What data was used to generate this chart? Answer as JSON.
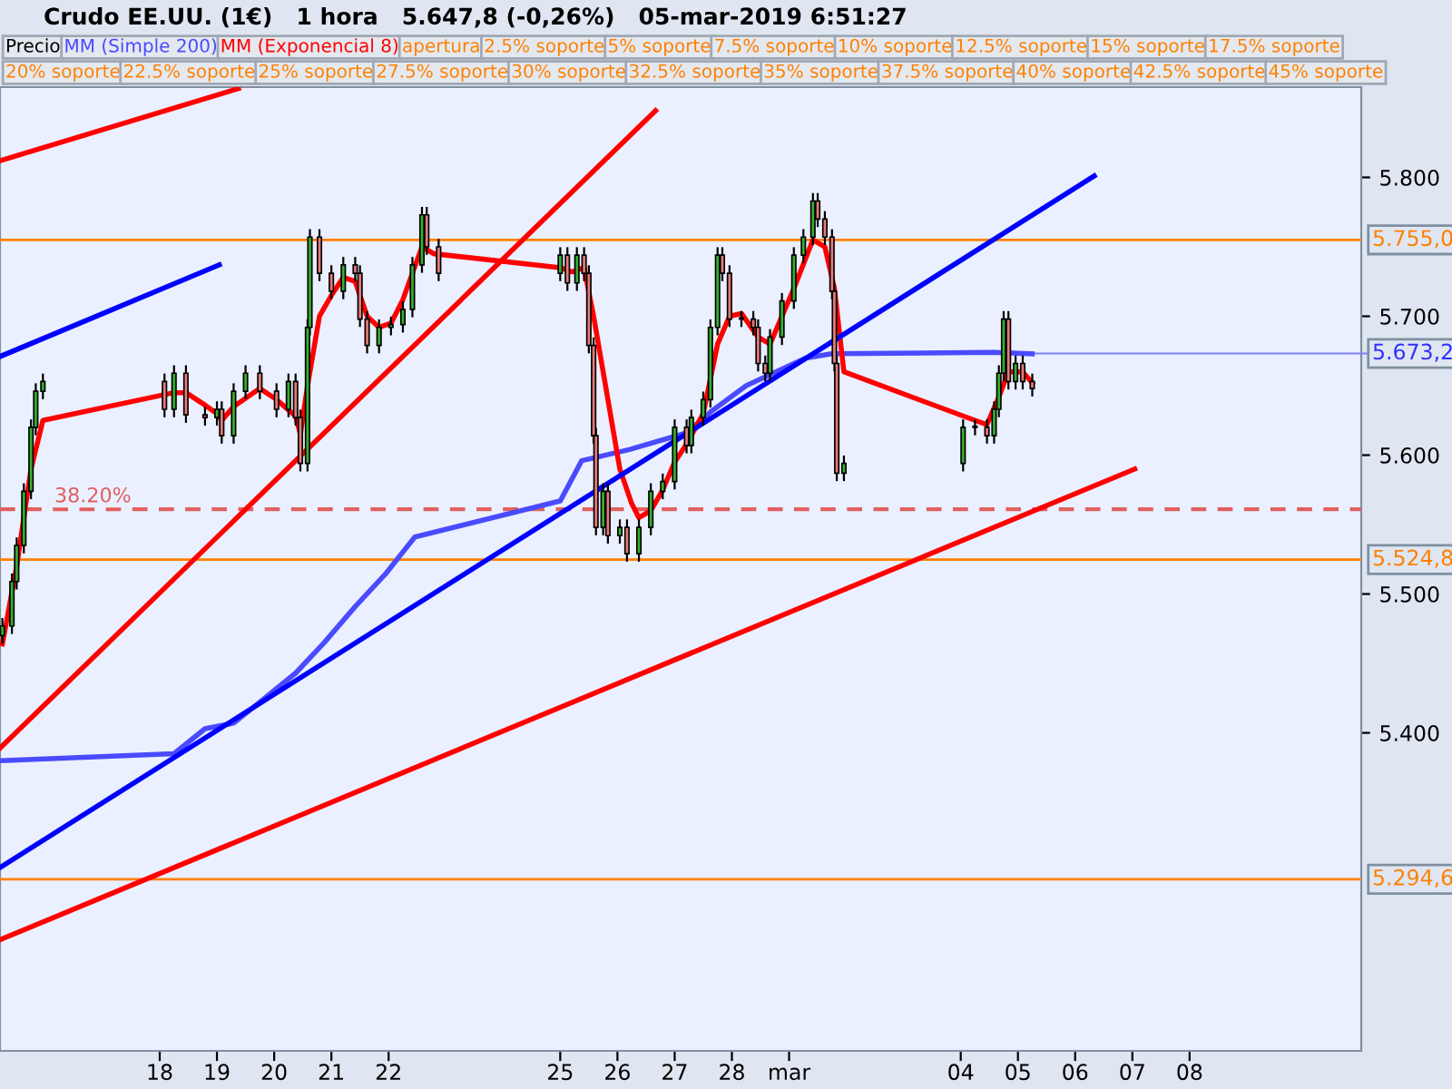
{
  "chart_data": {
    "type": "candlestick",
    "title": "Crudo EE.UU. (1€)   1 hora   5.647,8 (-0,26%)   05-mar-2019 6:51:27",
    "xlim": [
      "2019-02-15T05:00",
      "2019-03-11T00:00"
    ],
    "ylim": [
      5.171,
      5.865
    ],
    "xticks": [
      {
        "value": "2019-02-18",
        "label": "18"
      },
      {
        "value": "2019-02-19",
        "label": "19"
      },
      {
        "value": "2019-02-20",
        "label": "20"
      },
      {
        "value": "2019-02-21",
        "label": "21"
      },
      {
        "value": "2019-02-22",
        "label": "22"
      },
      {
        "value": "2019-02-25",
        "label": "25"
      },
      {
        "value": "2019-02-26",
        "label": "26"
      },
      {
        "value": "2019-02-27",
        "label": "27"
      },
      {
        "value": "2019-02-28",
        "label": "28"
      },
      {
        "value": "2019-03-01",
        "label": "mar"
      },
      {
        "value": "2019-03-04",
        "label": "04"
      },
      {
        "value": "2019-03-05",
        "label": "05"
      },
      {
        "value": "2019-03-06",
        "label": "06"
      },
      {
        "value": "2019-03-07",
        "label": "07"
      },
      {
        "value": "2019-03-08",
        "label": "08"
      }
    ],
    "yticks": [
      {
        "value": 5.4,
        "label": "5.400"
      },
      {
        "value": 5.5,
        "label": "5.500"
      },
      {
        "value": 5.6,
        "label": "5.600"
      },
      {
        "value": 5.7,
        "label": "5.700"
      },
      {
        "value": 5.8,
        "label": "5.800"
      }
    ],
    "legend": "top left",
    "grid": false,
    "series": [
      {
        "name": "Precio",
        "color": "#000000",
        "x": [
          "2019-02-15T06:00",
          "2019-02-15T10:00",
          "2019-02-15T12:00",
          "2019-02-15T15:00",
          "2019-02-15T18:00",
          "2019-02-15T20:00",
          "2019-02-15T23:00",
          "2019-02-18T02:00",
          "2019-02-18T06:00",
          "2019-02-18T11:00",
          "2019-02-18T19:00",
          "2019-02-19T00:00",
          "2019-02-19T02:00",
          "2019-02-19T07:00",
          "2019-02-19T12:00",
          "2019-02-19T18:00",
          "2019-02-20T01:00",
          "2019-02-20T06:00",
          "2019-02-20T09:00",
          "2019-02-20T11:00",
          "2019-02-20T14:00",
          "2019-02-20T15:00",
          "2019-02-20T19:00",
          "2019-02-21T00:00",
          "2019-02-21T05:00",
          "2019-02-21T10:00",
          "2019-02-21T12:00",
          "2019-02-21T15:00",
          "2019-02-21T20:00",
          "2019-02-22T01:00",
          "2019-02-22T06:00",
          "2019-02-22T10:00",
          "2019-02-22T14:00",
          "2019-02-22T16:00",
          "2019-02-22T21:00",
          "2019-02-25T00:00",
          "2019-02-25T03:00",
          "2019-02-25T07:00",
          "2019-02-25T10:00",
          "2019-02-25T12:00",
          "2019-02-25T14:00",
          "2019-02-25T15:00",
          "2019-02-25T18:00",
          "2019-02-25T20:00",
          "2019-02-26T01:00",
          "2019-02-26T04:00",
          "2019-02-26T09:00",
          "2019-02-26T14:00",
          "2019-02-26T19:00",
          "2019-02-27T00:00",
          "2019-02-27T05:00",
          "2019-02-27T07:00",
          "2019-02-27T12:00",
          "2019-02-27T15:00",
          "2019-02-27T18:00",
          "2019-02-27T20:00",
          "2019-02-27T23:00",
          "2019-02-28T04:00",
          "2019-02-28T09:00",
          "2019-02-28T11:00",
          "2019-02-28T14:00",
          "2019-02-28T16:00",
          "2019-02-28T21:00",
          "2019-03-01T02:00",
          "2019-03-01T06:00",
          "2019-03-01T10:00",
          "2019-03-01T12:00",
          "2019-03-01T15:00",
          "2019-03-01T18:00",
          "2019-03-01T19:00",
          "2019-03-01T20:00",
          "2019-03-01T23:00",
          "2019-03-04T01:00",
          "2019-03-04T06:00",
          "2019-03-04T11:00",
          "2019-03-04T14:00",
          "2019-03-04T16:00",
          "2019-03-04T18:00",
          "2019-03-04T20:00",
          "2019-03-04T23:00",
          "2019-03-05T02:00",
          "2019-03-05T06:00"
        ],
        "ohlc": [
          [
            5.47,
            5.482,
            5.465,
            5.477
          ],
          [
            5.477,
            5.514,
            5.472,
            5.509
          ],
          [
            5.509,
            5.54,
            5.504,
            5.535
          ],
          [
            5.535,
            5.579,
            5.53,
            5.574
          ],
          [
            5.574,
            5.625,
            5.569,
            5.62
          ],
          [
            5.62,
            5.651,
            5.615,
            5.646
          ],
          [
            5.646,
            5.658,
            5.641,
            5.653
          ],
          [
            5.653,
            5.658,
            5.628,
            5.633
          ],
          [
            5.633,
            5.664,
            5.628,
            5.659
          ],
          [
            5.659,
            5.664,
            5.624,
            5.629
          ],
          [
            5.629,
            5.634,
            5.622,
            5.627
          ],
          [
            5.627,
            5.638,
            5.622,
            5.633
          ],
          [
            5.633,
            5.638,
            5.609,
            5.614
          ],
          [
            5.614,
            5.651,
            5.609,
            5.646
          ],
          [
            5.646,
            5.664,
            5.641,
            5.659
          ],
          [
            5.659,
            5.664,
            5.641,
            5.646
          ],
          [
            5.646,
            5.651,
            5.628,
            5.633
          ],
          [
            5.633,
            5.658,
            5.628,
            5.653
          ],
          [
            5.653,
            5.658,
            5.622,
            5.627
          ],
          [
            5.627,
            5.632,
            5.589,
            5.594
          ],
          [
            5.594,
            5.697,
            5.589,
            5.692
          ],
          [
            5.692,
            5.762,
            5.687,
            5.757
          ],
          [
            5.757,
            5.762,
            5.726,
            5.731
          ],
          [
            5.731,
            5.736,
            5.713,
            5.718
          ],
          [
            5.718,
            5.742,
            5.713,
            5.737
          ],
          [
            5.737,
            5.742,
            5.726,
            5.731
          ],
          [
            5.731,
            5.736,
            5.693,
            5.698
          ],
          [
            5.698,
            5.703,
            5.674,
            5.679
          ],
          [
            5.679,
            5.697,
            5.674,
            5.692
          ],
          [
            5.692,
            5.699,
            5.687,
            5.694
          ],
          [
            5.694,
            5.71,
            5.689,
            5.705
          ],
          [
            5.705,
            5.742,
            5.7,
            5.737
          ],
          [
            5.737,
            5.778,
            5.732,
            5.773
          ],
          [
            5.773,
            5.778,
            5.745,
            5.75
          ],
          [
            5.75,
            5.755,
            5.726,
            5.731
          ],
          [
            5.731,
            5.749,
            5.726,
            5.744
          ],
          [
            5.744,
            5.749,
            5.719,
            5.724
          ],
          [
            5.724,
            5.749,
            5.719,
            5.744
          ],
          [
            5.744,
            5.749,
            5.726,
            5.731
          ],
          [
            5.731,
            5.736,
            5.674,
            5.679
          ],
          [
            5.679,
            5.684,
            5.609,
            5.614
          ],
          [
            5.614,
            5.619,
            5.543,
            5.548
          ],
          [
            5.548,
            5.579,
            5.543,
            5.574
          ],
          [
            5.574,
            5.579,
            5.537,
            5.542
          ],
          [
            5.542,
            5.553,
            5.537,
            5.548
          ],
          [
            5.548,
            5.553,
            5.524,
            5.529
          ],
          [
            5.529,
            5.553,
            5.524,
            5.548
          ],
          [
            5.548,
            5.579,
            5.543,
            5.574
          ],
          [
            5.574,
            5.586,
            5.569,
            5.581
          ],
          [
            5.581,
            5.625,
            5.576,
            5.62
          ],
          [
            5.62,
            5.625,
            5.602,
            5.607
          ],
          [
            5.607,
            5.632,
            5.602,
            5.627
          ],
          [
            5.627,
            5.645,
            5.622,
            5.64
          ],
          [
            5.64,
            5.697,
            5.635,
            5.692
          ],
          [
            5.692,
            5.749,
            5.687,
            5.744
          ],
          [
            5.744,
            5.749,
            5.726,
            5.731
          ],
          [
            5.731,
            5.736,
            5.693,
            5.698
          ],
          [
            5.698,
            5.703,
            5.693,
            5.698
          ],
          [
            5.698,
            5.703,
            5.687,
            5.692
          ],
          [
            5.692,
            5.697,
            5.661,
            5.666
          ],
          [
            5.666,
            5.671,
            5.654,
            5.659
          ],
          [
            5.659,
            5.69,
            5.654,
            5.685
          ],
          [
            5.685,
            5.716,
            5.68,
            5.711
          ],
          [
            5.711,
            5.749,
            5.706,
            5.744
          ],
          [
            5.744,
            5.762,
            5.739,
            5.757
          ],
          [
            5.757,
            5.788,
            5.752,
            5.783
          ],
          [
            5.783,
            5.788,
            5.765,
            5.77
          ],
          [
            5.77,
            5.775,
            5.752,
            5.757
          ],
          [
            5.757,
            5.762,
            5.713,
            5.718
          ],
          [
            5.718,
            5.723,
            5.661,
            5.666
          ],
          [
            5.666,
            5.671,
            5.582,
            5.587
          ],
          [
            5.587,
            5.599,
            5.582,
            5.594
          ],
          [
            5.594,
            5.625,
            5.589,
            5.62
          ],
          [
            5.62,
            5.625,
            5.615,
            5.62
          ],
          [
            5.62,
            5.625,
            5.609,
            5.614
          ],
          [
            5.614,
            5.638,
            5.609,
            5.633
          ],
          [
            5.633,
            5.664,
            5.628,
            5.659
          ],
          [
            5.659,
            5.703,
            5.654,
            5.698
          ],
          [
            5.698,
            5.703,
            5.648,
            5.653
          ],
          [
            5.653,
            5.671,
            5.648,
            5.666
          ],
          [
            5.666,
            5.671,
            5.648,
            5.653
          ],
          [
            5.653,
            5.658,
            5.643,
            5.648
          ]
        ]
      },
      {
        "name": "MM (Simple 200)",
        "type": "line",
        "color": "#4a4aff",
        "x": [
          "2019-02-15T05:00",
          "2019-02-18T06:00",
          "2019-02-18T19:00",
          "2019-02-19T07:00",
          "2019-02-19T20:00",
          "2019-02-20T09:00",
          "2019-02-20T21:00",
          "2019-02-21T10:00",
          "2019-02-21T23:00",
          "2019-02-22T11:00",
          "2019-02-25T00:00",
          "2019-02-25T09:00",
          "2019-02-26T05:00",
          "2019-02-27T05:00",
          "2019-02-27T15:00",
          "2019-02-28T06:00",
          "2019-03-01T07:00",
          "2019-03-01T18:00",
          "2019-03-04T14:00",
          "2019-03-05T06:00"
        ],
        "values": [
          5.38,
          5.385,
          5.403,
          5.407,
          5.425,
          5.443,
          5.465,
          5.491,
          5.515,
          5.541,
          5.567,
          5.596,
          5.604,
          5.616,
          5.631,
          5.65,
          5.67,
          5.673,
          5.674,
          5.673
        ]
      },
      {
        "name": "MM (Exponencial 8)",
        "type": "line",
        "color": "#ff0000",
        "x": [
          "2019-02-15T06:00",
          "2019-02-15T12:00",
          "2019-02-15T18:00",
          "2019-02-15T23:00",
          "2019-02-18T06:00",
          "2019-02-18T11:00",
          "2019-02-18T19:00",
          "2019-02-19T00:00",
          "2019-02-19T02:00",
          "2019-02-19T07:00",
          "2019-02-19T18:00",
          "2019-02-20T01:00",
          "2019-02-20T09:00",
          "2019-02-20T11:00",
          "2019-02-20T14:00",
          "2019-02-20T19:00",
          "2019-02-21T00:00",
          "2019-02-21T05:00",
          "2019-02-21T10:00",
          "2019-02-21T15:00",
          "2019-02-21T20:00",
          "2019-02-22T01:00",
          "2019-02-22T06:00",
          "2019-02-22T14:00",
          "2019-02-22T19:00",
          "2019-02-25T00:00",
          "2019-02-25T05:00",
          "2019-02-25T10:00",
          "2019-02-25T14:00",
          "2019-02-25T20:00",
          "2019-02-26T01:00",
          "2019-02-26T06:00",
          "2019-02-26T09:00",
          "2019-02-26T14:00",
          "2019-02-26T19:00",
          "2019-02-27T00:00",
          "2019-02-27T05:00",
          "2019-02-27T12:00",
          "2019-02-27T18:00",
          "2019-02-27T23:00",
          "2019-02-28T04:00",
          "2019-02-28T11:00",
          "2019-02-28T16:00",
          "2019-03-01T02:00",
          "2019-03-01T10:00",
          "2019-03-01T15:00",
          "2019-03-01T19:00",
          "2019-03-01T23:00",
          "2019-03-04T06:00",
          "2019-03-04T11:00",
          "2019-03-04T16:00",
          "2019-03-04T20:00",
          "2019-03-05T02:00",
          "2019-03-05T06:00"
        ],
        "values": [
          5.464,
          5.52,
          5.59,
          5.625,
          5.645,
          5.645,
          5.636,
          5.63,
          5.625,
          5.635,
          5.648,
          5.64,
          5.628,
          5.615,
          5.65,
          5.7,
          5.715,
          5.728,
          5.725,
          5.7,
          5.692,
          5.695,
          5.712,
          5.75,
          5.745,
          5.735,
          5.732,
          5.735,
          5.7,
          5.64,
          5.59,
          5.565,
          5.555,
          5.56,
          5.575,
          5.595,
          5.608,
          5.63,
          5.68,
          5.7,
          5.702,
          5.685,
          5.68,
          5.72,
          5.755,
          5.75,
          5.72,
          5.66,
          5.625,
          5.622,
          5.642,
          5.66,
          5.66,
          5.652
        ]
      },
      {
        "type": "line",
        "color": "#ff0000",
        "x": [
          "2019-02-15T05:00",
          "2019-02-26T16:00"
        ],
        "values": [
          5.389,
          5.848
        ]
      },
      {
        "type": "line",
        "color": "#ff0000",
        "x": [
          "2019-02-15T05:00",
          "2019-02-19T09:00"
        ],
        "values": [
          5.812,
          5.864
        ]
      },
      {
        "type": "line",
        "color": "#ff0000",
        "x": [
          "2019-02-15T05:00",
          "2019-03-07T01:00"
        ],
        "values": [
          5.251,
          5.59
        ]
      },
      {
        "type": "line",
        "color": "#0000ff",
        "x": [
          "2019-02-15T05:00",
          "2019-03-06T08:00"
        ],
        "values": [
          5.303,
          5.801
        ]
      },
      {
        "type": "line",
        "color": "#0000ff",
        "x": [
          "2019-02-15T05:00",
          "2019-02-19T01:00"
        ],
        "values": [
          5.671,
          5.737
        ]
      }
    ],
    "ref_lines": [
      {
        "axis": "y",
        "value": 5.755,
        "label": "5.755,0",
        "color": "#ff8000"
      },
      {
        "axis": "y",
        "value": 5.5248,
        "label": "5.524,8",
        "color": "#ff8000"
      },
      {
        "axis": "y",
        "value": 5.2946,
        "label": "5.294,6",
        "color": "#ff8000"
      },
      {
        "axis": "y",
        "value": 5.561,
        "color": "#e06060",
        "line_style": "dashed"
      }
    ],
    "annotations": [
      "38.20%",
      {
        "text": "5.673,2",
        "x": "2019-03-05T06:00",
        "y": 5.6732
      },
      "apertura",
      "2.5% soporte",
      "5% soporte",
      "7.5% soporte",
      "10% soporte",
      "12.5% soporte",
      "15% soporte",
      "17.5% soporte",
      "20% soporte",
      "22.5% soporte",
      "25% soporte",
      "27.5% soporte",
      "30% soporte",
      "32.5% soporte",
      "35% soporte",
      "37.5% soporte",
      "40% soporte",
      "42.5% soporte",
      "45% soporte"
    ]
  }
}
